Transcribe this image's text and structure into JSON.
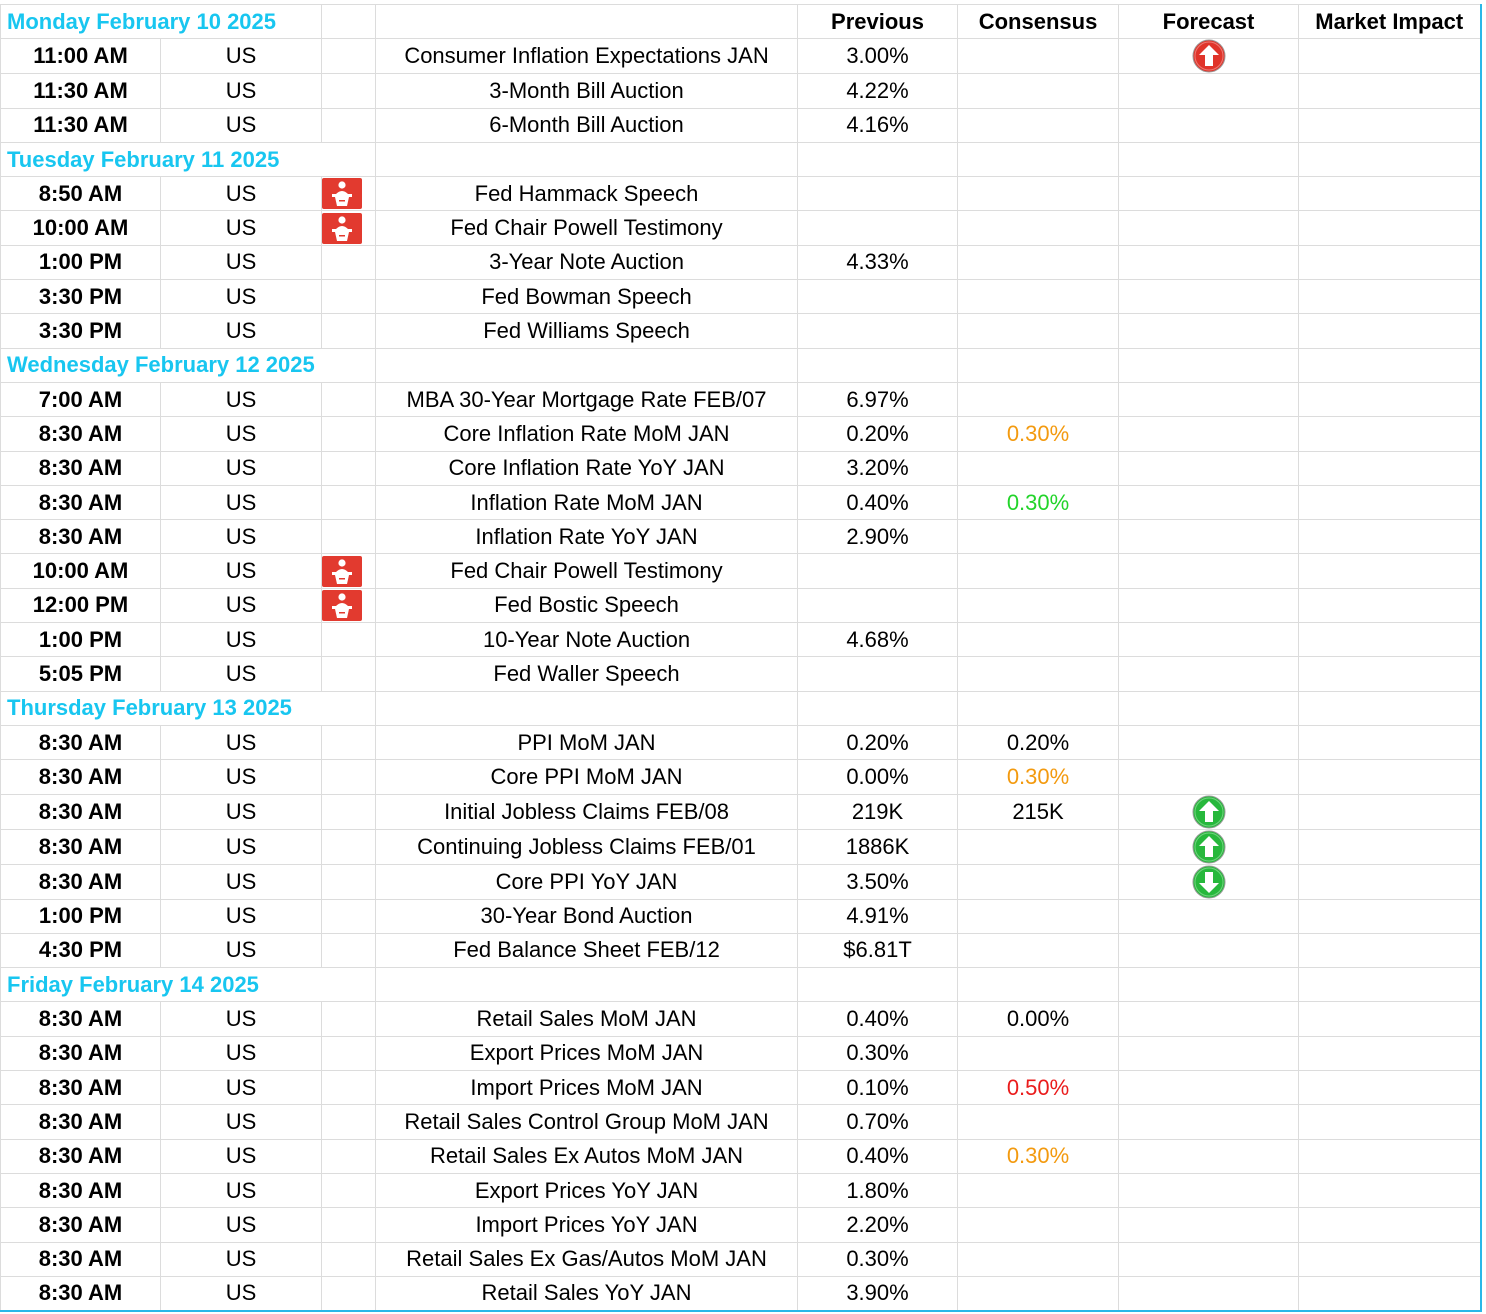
{
  "headers": {
    "previous": "Previous",
    "consensus": "Consensus",
    "forecast": "Forecast",
    "impact": "Market Impact"
  },
  "colors": {
    "day_header": "#18c6f0",
    "orange": "#f39a0f",
    "green": "#22d42a",
    "red": "#ea1c1c",
    "speaker_icon": "#e23a2f",
    "arrow_red": "#e0342a",
    "arrow_green": "#27b83c",
    "border_accent": "#2ab8e8"
  },
  "days": [
    {
      "label": "Monday February 10 2025",
      "events": [
        {
          "time": "11:00 AM",
          "country": "US",
          "icon": "",
          "event": "Consumer Inflation Expectations JAN",
          "previous": "3.00%",
          "consensus": "",
          "consensus_color": "",
          "forecast_icon": "arrow-up-red-icon"
        },
        {
          "time": "11:30 AM",
          "country": "US",
          "icon": "",
          "event": "3-Month Bill Auction",
          "previous": "4.22%",
          "consensus": "",
          "consensus_color": "",
          "forecast_icon": ""
        },
        {
          "time": "11:30 AM",
          "country": "US",
          "icon": "",
          "event": "6-Month Bill Auction",
          "previous": "4.16%",
          "consensus": "",
          "consensus_color": "",
          "forecast_icon": ""
        }
      ]
    },
    {
      "label": "Tuesday February 11 2025",
      "events": [
        {
          "time": "8:50 AM",
          "country": "US",
          "icon": "speaker-icon",
          "event": "Fed Hammack Speech",
          "previous": "",
          "consensus": "",
          "consensus_color": "",
          "forecast_icon": ""
        },
        {
          "time": "10:00 AM",
          "country": "US",
          "icon": "speaker-icon",
          "event": "Fed Chair Powell Testimony",
          "previous": "",
          "consensus": "",
          "consensus_color": "",
          "forecast_icon": ""
        },
        {
          "time": "1:00 PM",
          "country": "US",
          "icon": "",
          "event": "3-Year Note Auction",
          "previous": "4.33%",
          "consensus": "",
          "consensus_color": "",
          "forecast_icon": ""
        },
        {
          "time": "3:30 PM",
          "country": "US",
          "icon": "",
          "event": "Fed Bowman Speech",
          "previous": "",
          "consensus": "",
          "consensus_color": "",
          "forecast_icon": ""
        },
        {
          "time": "3:30 PM",
          "country": "US",
          "icon": "",
          "event": "Fed Williams Speech",
          "previous": "",
          "consensus": "",
          "consensus_color": "",
          "forecast_icon": ""
        }
      ]
    },
    {
      "label": "Wednesday February 12 2025",
      "events": [
        {
          "time": "7:00 AM",
          "country": "US",
          "icon": "",
          "event": "MBA 30-Year Mortgage Rate FEB/07",
          "previous": "6.97%",
          "consensus": "",
          "consensus_color": "",
          "forecast_icon": ""
        },
        {
          "time": "8:30 AM",
          "country": "US",
          "icon": "",
          "event": "Core Inflation Rate MoM JAN",
          "previous": "0.20%",
          "consensus": "0.30%",
          "consensus_color": "#f39a0f",
          "forecast_icon": ""
        },
        {
          "time": "8:30 AM",
          "country": "US",
          "icon": "",
          "event": "Core Inflation Rate YoY JAN",
          "previous": "3.20%",
          "consensus": "",
          "consensus_color": "",
          "forecast_icon": ""
        },
        {
          "time": "8:30 AM",
          "country": "US",
          "icon": "",
          "event": "Inflation Rate MoM JAN",
          "previous": "0.40%",
          "consensus": "0.30%",
          "consensus_color": "#22d42a",
          "forecast_icon": ""
        },
        {
          "time": "8:30 AM",
          "country": "US",
          "icon": "",
          "event": "Inflation Rate YoY JAN",
          "previous": "2.90%",
          "consensus": "",
          "consensus_color": "",
          "forecast_icon": ""
        },
        {
          "time": "10:00 AM",
          "country": "US",
          "icon": "speaker-icon",
          "event": "Fed Chair Powell Testimony",
          "previous": "",
          "consensus": "",
          "consensus_color": "",
          "forecast_icon": ""
        },
        {
          "time": "12:00 PM",
          "country": "US",
          "icon": "speaker-icon",
          "event": "Fed Bostic Speech",
          "previous": "",
          "consensus": "",
          "consensus_color": "",
          "forecast_icon": ""
        },
        {
          "time": "1:00 PM",
          "country": "US",
          "icon": "",
          "event": "10-Year Note Auction",
          "previous": "4.68%",
          "consensus": "",
          "consensus_color": "",
          "forecast_icon": ""
        },
        {
          "time": "5:05 PM",
          "country": "US",
          "icon": "",
          "event": "Fed Waller Speech",
          "previous": "",
          "consensus": "",
          "consensus_color": "",
          "forecast_icon": ""
        }
      ]
    },
    {
      "label": "Thursday February 13 2025",
      "events": [
        {
          "time": "8:30 AM",
          "country": "US",
          "icon": "",
          "event": "PPI MoM JAN",
          "previous": "0.20%",
          "consensus": "0.20%",
          "consensus_color": "#000000",
          "forecast_icon": ""
        },
        {
          "time": "8:30 AM",
          "country": "US",
          "icon": "",
          "event": "Core PPI MoM JAN",
          "previous": "0.00%",
          "consensus": "0.30%",
          "consensus_color": "#f39a0f",
          "forecast_icon": ""
        },
        {
          "time": "8:30 AM",
          "country": "US",
          "icon": "",
          "event": "Initial Jobless Claims FEB/08",
          "previous": "219K",
          "consensus": "215K",
          "consensus_color": "#000000",
          "forecast_icon": "arrow-up-green-icon"
        },
        {
          "time": "8:30 AM",
          "country": "US",
          "icon": "",
          "event": "Continuing Jobless Claims FEB/01",
          "previous": "1886K",
          "consensus": "",
          "consensus_color": "",
          "forecast_icon": "arrow-up-green-icon"
        },
        {
          "time": "8:30 AM",
          "country": "US",
          "icon": "",
          "event": "Core PPI YoY JAN",
          "previous": "3.50%",
          "consensus": "",
          "consensus_color": "",
          "forecast_icon": "arrow-down-green-icon"
        },
        {
          "time": "1:00 PM",
          "country": "US",
          "icon": "",
          "event": "30-Year Bond Auction",
          "previous": "4.91%",
          "consensus": "",
          "consensus_color": "",
          "forecast_icon": ""
        },
        {
          "time": "4:30 PM",
          "country": "US",
          "icon": "",
          "event": "Fed Balance Sheet FEB/12",
          "previous": "$6.81T",
          "consensus": "",
          "consensus_color": "",
          "forecast_icon": ""
        }
      ]
    },
    {
      "label": "Friday February 14 2025",
      "events": [
        {
          "time": "8:30 AM",
          "country": "US",
          "icon": "",
          "event": "Retail Sales MoM JAN",
          "previous": "0.40%",
          "consensus": "0.00%",
          "consensus_color": "#000000",
          "forecast_icon": ""
        },
        {
          "time": "8:30 AM",
          "country": "US",
          "icon": "",
          "event": "Export Prices MoM JAN",
          "previous": "0.30%",
          "consensus": "",
          "consensus_color": "",
          "forecast_icon": ""
        },
        {
          "time": "8:30 AM",
          "country": "US",
          "icon": "",
          "event": "Import Prices MoM JAN",
          "previous": "0.10%",
          "consensus": "0.50%",
          "consensus_color": "#ea1c1c",
          "forecast_icon": ""
        },
        {
          "time": "8:30 AM",
          "country": "US",
          "icon": "",
          "event": "Retail Sales Control Group MoM JAN",
          "previous": "0.70%",
          "consensus": "",
          "consensus_color": "",
          "forecast_icon": ""
        },
        {
          "time": "8:30 AM",
          "country": "US",
          "icon": "",
          "event": "Retail Sales Ex Autos MoM JAN",
          "previous": "0.40%",
          "consensus": "0.30%",
          "consensus_color": "#f39a0f",
          "forecast_icon": ""
        },
        {
          "time": "8:30 AM",
          "country": "US",
          "icon": "",
          "event": "Export Prices YoY JAN",
          "previous": "1.80%",
          "consensus": "",
          "consensus_color": "",
          "forecast_icon": ""
        },
        {
          "time": "8:30 AM",
          "country": "US",
          "icon": "",
          "event": "Import Prices YoY JAN",
          "previous": "2.20%",
          "consensus": "",
          "consensus_color": "",
          "forecast_icon": ""
        },
        {
          "time": "8:30 AM",
          "country": "US",
          "icon": "",
          "event": "Retail Sales Ex Gas/Autos MoM JAN",
          "previous": "0.30%",
          "consensus": "",
          "consensus_color": "",
          "forecast_icon": ""
        },
        {
          "time": "8:30 AM",
          "country": "US",
          "icon": "",
          "event": "Retail Sales YoY JAN",
          "previous": "3.90%",
          "consensus": "",
          "consensus_color": "",
          "forecast_icon": ""
        }
      ]
    }
  ]
}
